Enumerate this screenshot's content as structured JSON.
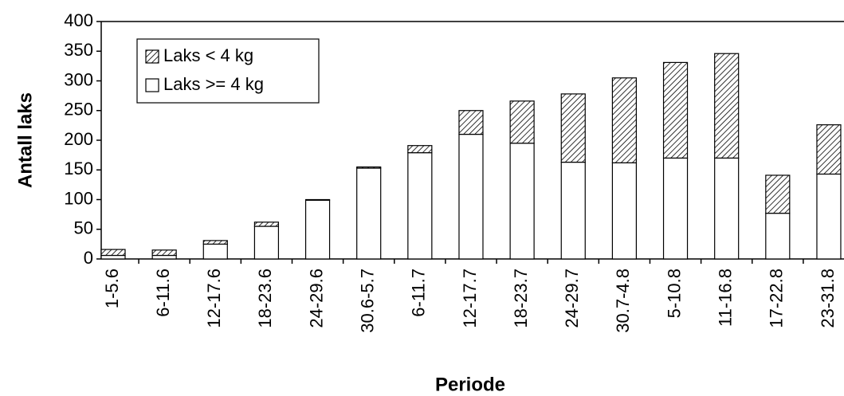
{
  "chart_data": {
    "type": "stacked_bar",
    "x_label": "Periode",
    "y_label": "Antall laks",
    "categories": [
      "1-5.6",
      "6-11.6",
      "12-17.6",
      "18-23.6",
      "24-29.6",
      "30.6-5.7",
      "6-11.7",
      "12-17.7",
      "18-23.7",
      "24-29.7",
      "30.7-4.8",
      "5-10.8",
      "11-16.8",
      "17-22.8",
      "23-31.8"
    ],
    "series": [
      {
        "name": "Laks >= 4 kg",
        "color": "#ffffff",
        "values": [
          6,
          6,
          25,
          55,
          99,
          153,
          179,
          210,
          195,
          163,
          162,
          170,
          170,
          77,
          143
        ]
      },
      {
        "name": "Laks < 4 kg",
        "color": "hatch",
        "values": [
          10,
          9,
          6,
          7,
          1,
          2,
          12,
          40,
          71,
          115,
          143,
          161,
          176,
          64,
          83
        ]
      }
    ],
    "ylim": [
      0,
      400
    ],
    "yticks": [
      0,
      50,
      100,
      150,
      200,
      250,
      300,
      350,
      400
    ],
    "legend": "top-left"
  }
}
